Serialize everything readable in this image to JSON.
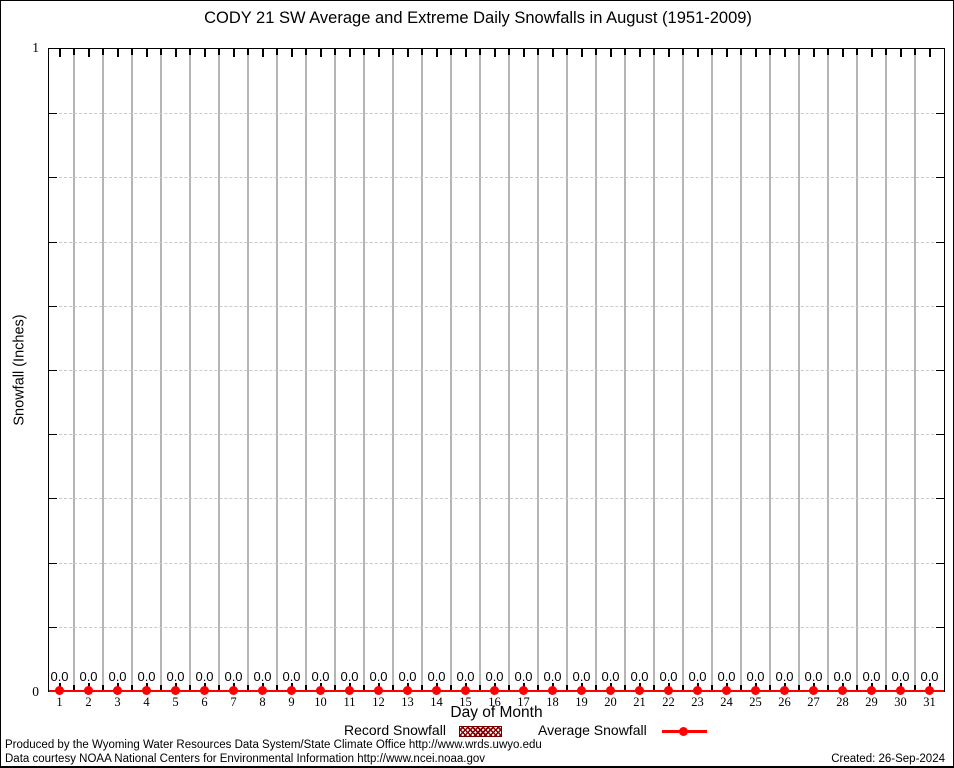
{
  "title": "CODY 21 SW Average and Extreme Daily Snowfalls in August (1951-2009)",
  "chart_data": {
    "type": "line",
    "title": "CODY 21 SW Average and Extreme Daily Snowfalls in August (1951-2009)",
    "xlabel": "Day of Month",
    "ylabel": "Snowfall (Inches)",
    "x": [
      1,
      2,
      3,
      4,
      5,
      6,
      7,
      8,
      9,
      10,
      11,
      12,
      13,
      14,
      15,
      16,
      17,
      18,
      19,
      20,
      21,
      22,
      23,
      24,
      25,
      26,
      27,
      28,
      29,
      30,
      31
    ],
    "series": [
      {
        "name": "Record Snowfall",
        "style": "hatched-box",
        "color": "#8b0000",
        "values": [
          0,
          0,
          0,
          0,
          0,
          0,
          0,
          0,
          0,
          0,
          0,
          0,
          0,
          0,
          0,
          0,
          0,
          0,
          0,
          0,
          0,
          0,
          0,
          0,
          0,
          0,
          0,
          0,
          0,
          0,
          0
        ]
      },
      {
        "name": "Average Snowfall",
        "style": "line-point",
        "color": "#ff0000",
        "values": [
          0,
          0,
          0,
          0,
          0,
          0,
          0,
          0,
          0,
          0,
          0,
          0,
          0,
          0,
          0,
          0,
          0,
          0,
          0,
          0,
          0,
          0,
          0,
          0,
          0,
          0,
          0,
          0,
          0,
          0,
          0
        ]
      }
    ],
    "point_label_decimals": 1,
    "ylim": [
      0,
      1
    ],
    "ytick_labels": {
      "max": "1",
      "min": "0"
    },
    "ygrid_step": 0.1,
    "grid": true,
    "legend_position": "bottom-center"
  },
  "legend": {
    "record_label": "Record Snowfall",
    "average_label": "Average Snowfall"
  },
  "footer": {
    "line1": "Produced by the Wyoming Water Resources Data System/State Climate Office http://www.wrds.uwyo.edu",
    "line2": "Data courtesy NOAA National Centers for Environmental Information http://www.ncei.noaa.gov",
    "created": "Created: 26-Sep-2024"
  },
  "colors": {
    "average_red": "#ff0000",
    "record_dark_red": "#8b0000",
    "grid_gray": "#b5b5b5",
    "grid_dash_gray": "#c9c9c9"
  }
}
